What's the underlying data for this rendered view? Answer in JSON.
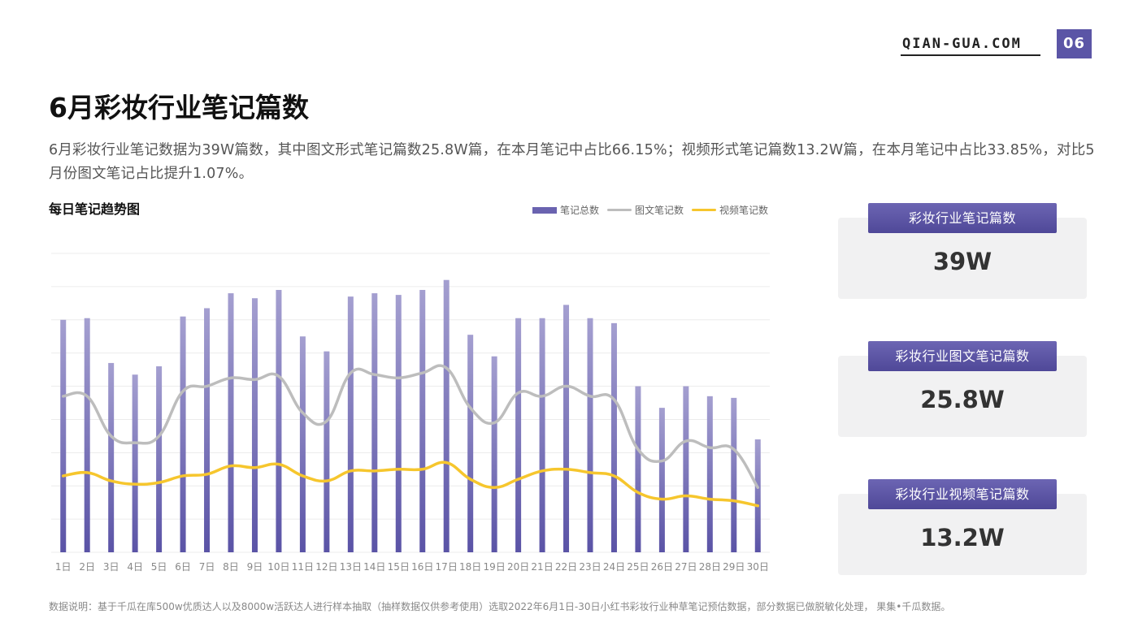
{
  "header": {
    "brand": "QIAN-GUA.COM",
    "page_number": "06"
  },
  "title": "6月彩妆行业笔记篇数",
  "description": "6月彩妆行业笔记数据为39W篇数，其中图文形式笔记篇数25.8W篇，在本月笔记中占比66.15%；视频形式笔记篇数13.2W篇，在本月笔记中占比33.85%，对比5月份图文笔记占比提升1.07%。",
  "chart_title": "每日笔记趋势图",
  "legend": {
    "total": "笔记总数",
    "image": "图文笔记数",
    "video": "视频笔记数"
  },
  "colors": {
    "accent": "#5b55a6",
    "bar": "#6a63b0",
    "image_line": "#bdbdbd",
    "video_line": "#f6c62d"
  },
  "chart_data": {
    "type": "bar",
    "categories": [
      "1日",
      "2日",
      "3日",
      "4日",
      "5日",
      "6日",
      "7日",
      "8日",
      "9日",
      "10日",
      "11日",
      "12日",
      "13日",
      "14日",
      "15日",
      "16日",
      "17日",
      "18日",
      "19日",
      "20日",
      "21日",
      "22日",
      "23日",
      "24日",
      "25日",
      "26日",
      "27日",
      "28日",
      "29日",
      "30日"
    ],
    "series": [
      {
        "name": "笔记总数",
        "type": "bar",
        "values": [
          14.0,
          14.1,
          11.4,
          10.7,
          11.2,
          14.2,
          14.7,
          15.6,
          15.3,
          15.8,
          13.0,
          12.1,
          15.4,
          15.6,
          15.5,
          15.8,
          16.4,
          13.1,
          11.8,
          14.1,
          14.1,
          14.9,
          14.1,
          13.8,
          10.0,
          8.7,
          10.0,
          9.4,
          9.3,
          6.8
        ]
      },
      {
        "name": "图文笔记数",
        "type": "line",
        "values": [
          9.4,
          9.4,
          7.0,
          6.6,
          7.0,
          9.7,
          10.0,
          10.5,
          10.4,
          10.6,
          8.4,
          7.9,
          10.8,
          10.7,
          10.5,
          10.8,
          11.1,
          8.7,
          7.8,
          9.6,
          9.4,
          10.0,
          9.4,
          9.2,
          6.2,
          5.5,
          6.7,
          6.3,
          6.2,
          3.9
        ]
      },
      {
        "name": "视频笔记数",
        "type": "line",
        "values": [
          4.6,
          4.8,
          4.3,
          4.1,
          4.2,
          4.6,
          4.7,
          5.2,
          5.1,
          5.3,
          4.6,
          4.3,
          4.9,
          4.9,
          5.0,
          5.0,
          5.4,
          4.4,
          3.9,
          4.4,
          4.9,
          5.0,
          4.8,
          4.6,
          3.6,
          3.2,
          3.4,
          3.2,
          3.1,
          2.8
        ]
      }
    ],
    "ylim": [
      0,
      18
    ],
    "grid": true,
    "legend_position": "top-right"
  },
  "cards": [
    {
      "label": "彩妆行业笔记篇数",
      "value": "39W"
    },
    {
      "label": "彩妆行业图文笔记篇数",
      "value": "25.8W"
    },
    {
      "label": "彩妆行业视频笔记篇数",
      "value": "13.2W"
    }
  ],
  "footnote": "数据说明：基于千瓜在库500w优质达人以及8000w活跃达人进行样本抽取（抽样数据仅供参考使用）选取2022年6月1日-30日小红书彩妆行业种草笔记预估数据，部分数据已做脱敏化处理， 果集•千瓜数据。"
}
